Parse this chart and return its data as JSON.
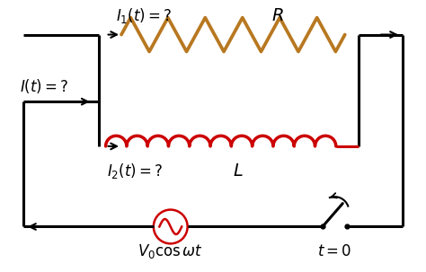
{
  "bg_color": "#ffffff",
  "line_color": "#000000",
  "resistor_color": "#b87820",
  "inductor_color": "#cc0000",
  "line_width": 2.2,
  "labels": {
    "I_t": "$I(t)=?$",
    "I1_t": "$I_1(t)=?$",
    "I2_t": "$I_2(t)=?$",
    "R": "$R$",
    "L": "$L$",
    "V0": "$V_0 \\cos \\omega t$",
    "t0": "$t=0$"
  },
  "fontsize": 12
}
